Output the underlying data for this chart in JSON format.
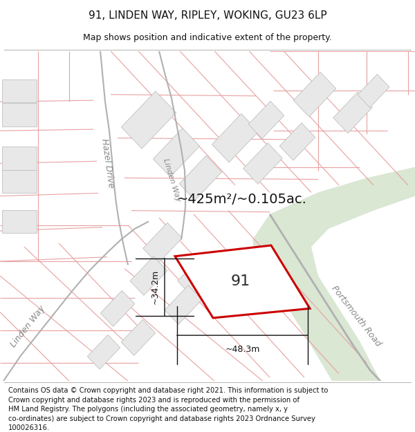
{
  "title": "91, LINDEN WAY, RIPLEY, WOKING, GU23 6LP",
  "subtitle": "Map shows position and indicative extent of the property.",
  "footer": "Contains OS data © Crown copyright and database right 2021. This information is subject to Crown copyright and database rights 2023 and is reproduced with the permission of\nHM Land Registry. The polygons (including the associated geometry, namely x, y\nco-ordinates) are subject to Crown copyright and database rights 2023 Ordnance Survey\n100026316.",
  "area_label": "~425m²/~0.105ac.",
  "property_number": "91",
  "width_label": "~48.3m",
  "height_label": "~34.2m",
  "bg_color": "#ffffff",
  "green_color": "#d4e3cc",
  "property_fill": "#ffffff",
  "property_edge": "#cc0000",
  "building_fill": "#e8e8e8",
  "building_edge": "#c0c0c0",
  "parcel_line": "#e8a0a0",
  "road_line": "#c8a0a0",
  "road_gray": "#b0b0b0",
  "dim_color": "#111111",
  "text_color": "#111111",
  "road_text_color": "#888888",
  "title_fontsize": 11,
  "subtitle_fontsize": 9,
  "footer_fontsize": 7.2,
  "area_fontsize": 14,
  "number_fontsize": 16,
  "dim_fontsize": 9,
  "road_fontsize": 9
}
